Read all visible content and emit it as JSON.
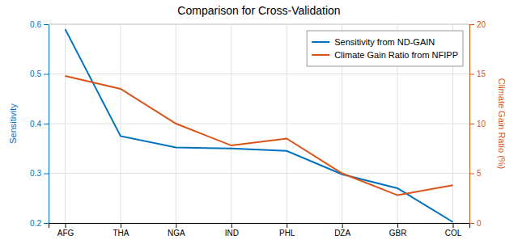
{
  "chart_data": {
    "type": "line",
    "title": "Comparison for Cross-Validation",
    "categories": [
      "AFG",
      "THA",
      "NGA",
      "IND",
      "PHL",
      "DZA",
      "GBR",
      "COL"
    ],
    "series": [
      {
        "name": "Sensitivity from ND-GAIN",
        "color": "#0072BD",
        "axis": "y",
        "values": [
          0.59,
          0.375,
          0.352,
          0.35,
          0.345,
          0.298,
          0.27,
          0.202
        ]
      },
      {
        "name": "Climate Gain Ratio from NFIPP",
        "color": "#D95319",
        "axis": "y2",
        "values": [
          14.8,
          13.5,
          10.0,
          7.8,
          8.5,
          5.0,
          2.8,
          3.8
        ]
      }
    ],
    "ylabel": "Sensitivity",
    "y2label": "Climate Gain Ratio (%)",
    "ylim": [
      0.2,
      0.6
    ],
    "yticks": [
      0.2,
      0.3,
      0.4,
      0.5,
      0.6
    ],
    "y2lim": [
      0,
      20
    ],
    "y2ticks": [
      0,
      5,
      10,
      15,
      20
    ],
    "grid": true,
    "legend": "upper right"
  }
}
